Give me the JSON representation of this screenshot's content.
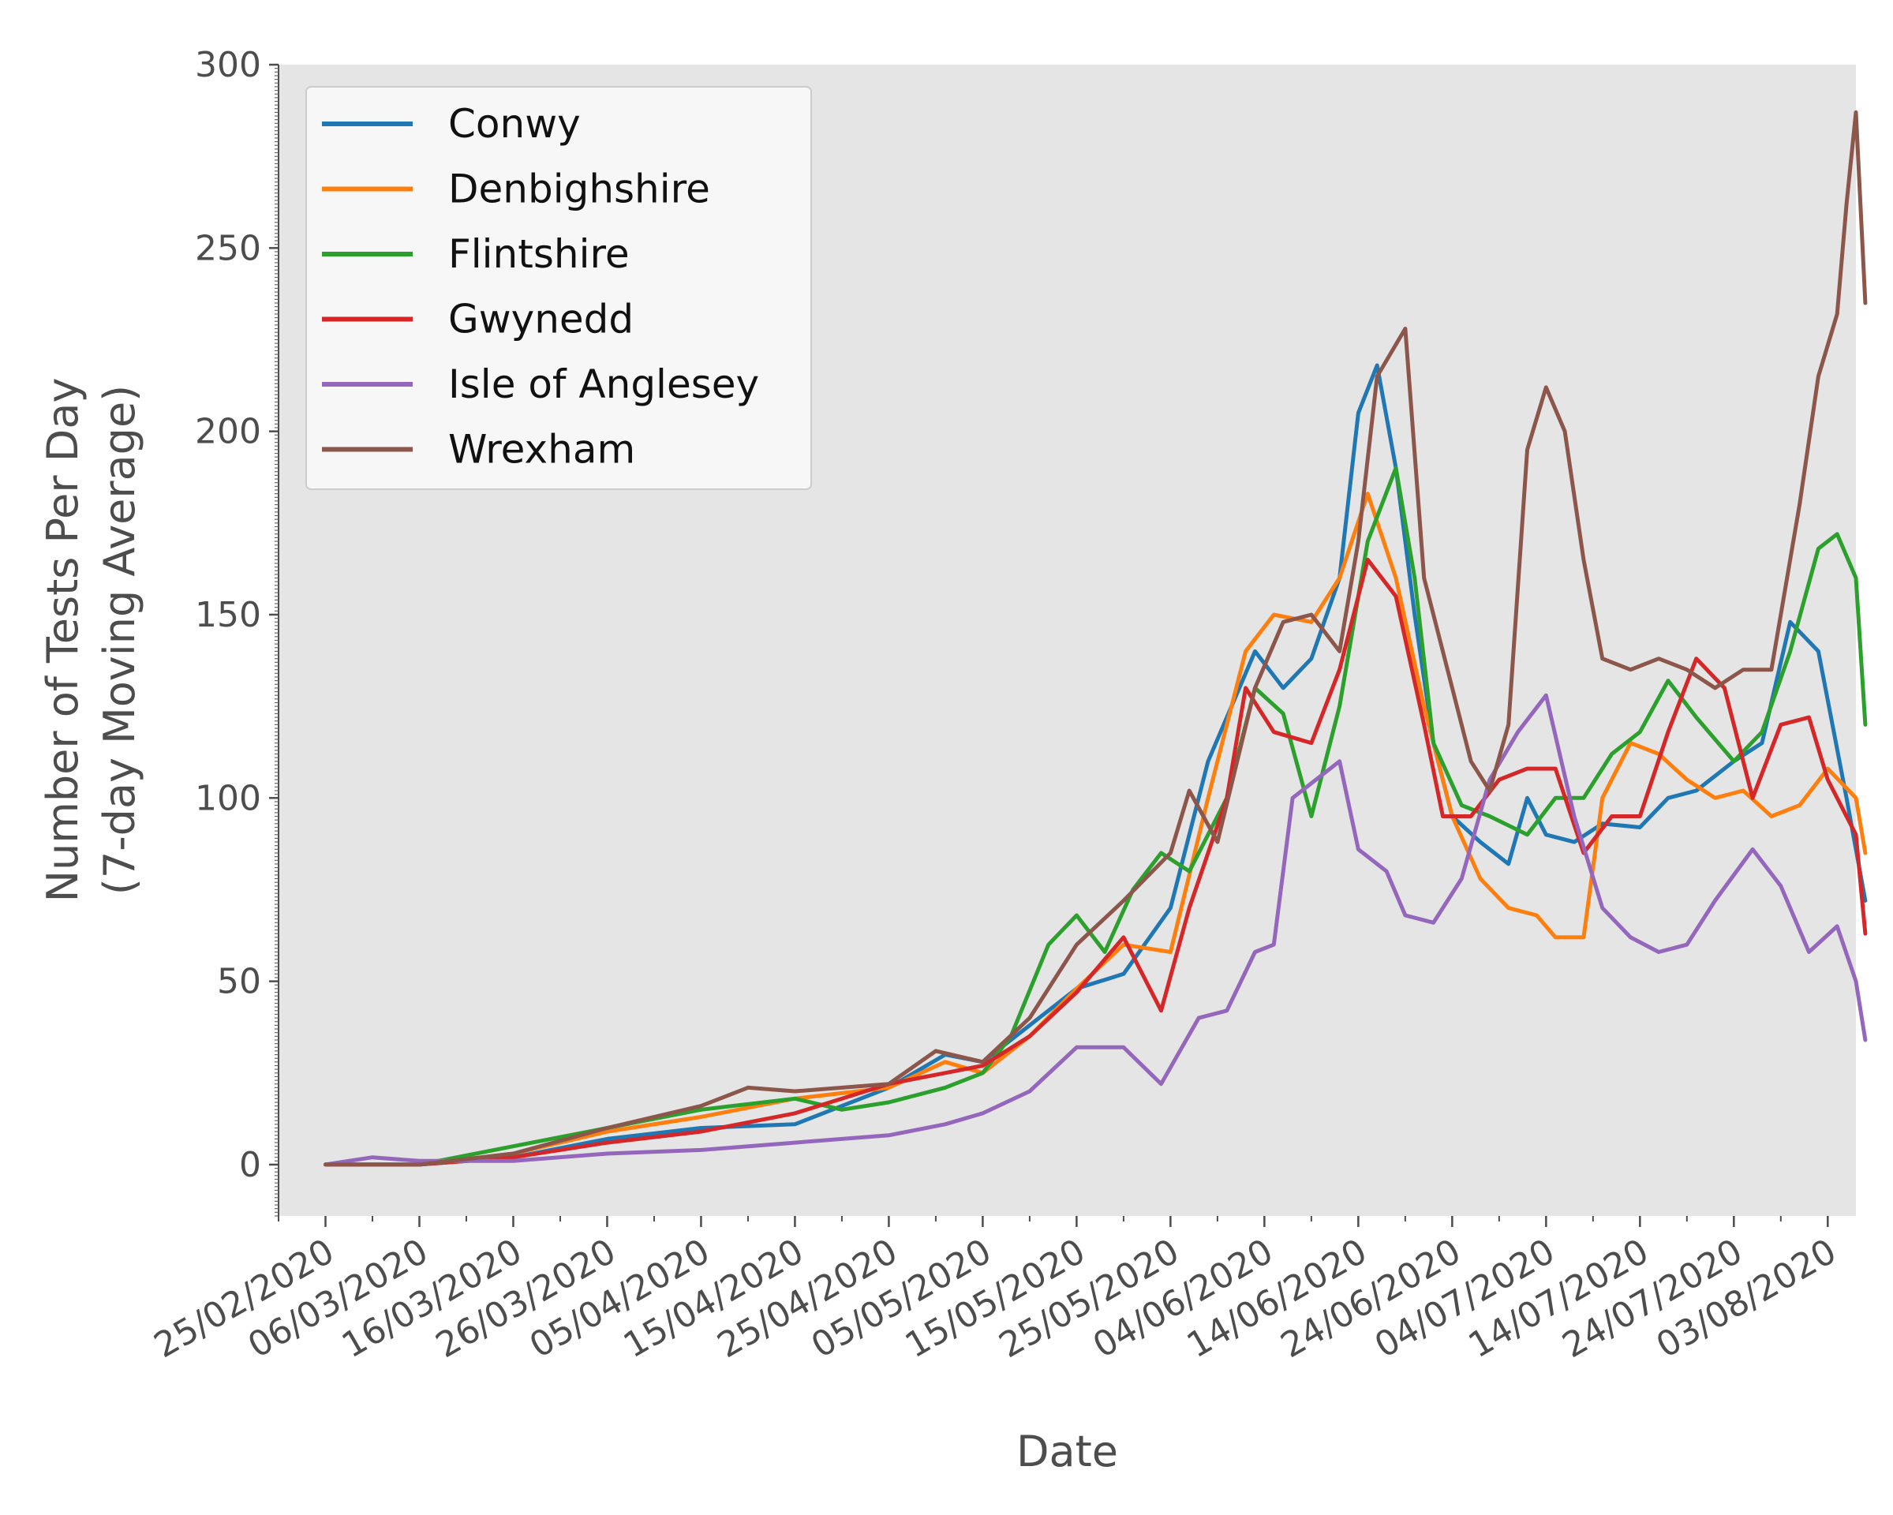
{
  "chart_data": {
    "type": "line",
    "title": "",
    "xlabel": "Date",
    "ylabel": [
      "Number of Tests Per Day",
      "(7-day Moving Average)"
    ],
    "x_range": [
      "2020-02-20",
      "2020-08-06"
    ],
    "x_ticks": [
      "25/02/2020",
      "06/03/2020",
      "16/03/2020",
      "26/03/2020",
      "05/04/2020",
      "15/04/2020",
      "25/04/2020",
      "05/05/2020",
      "15/05/2020",
      "25/05/2020",
      "04/06/2020",
      "14/06/2020",
      "24/06/2020",
      "04/07/2020",
      "14/07/2020",
      "24/07/2020",
      "03/08/2020"
    ],
    "ylim": [
      -14,
      300
    ],
    "y_ticks": [
      0,
      50,
      100,
      150,
      200,
      250,
      300
    ],
    "grid": false,
    "legend": {
      "placement": "upper-left"
    },
    "colors": {
      "background": "#e5e5e5"
    },
    "series": [
      {
        "name": "Conwy",
        "color": "#1f77b4",
        "points": [
          [
            "25/02/2020",
            0
          ],
          [
            "06/03/2020",
            0
          ],
          [
            "16/03/2020",
            2
          ],
          [
            "26/03/2020",
            7
          ],
          [
            "05/04/2020",
            10
          ],
          [
            "15/04/2020",
            11
          ],
          [
            "25/04/2020",
            21
          ],
          [
            "01/05/2020",
            30
          ],
          [
            "05/05/2020",
            28
          ],
          [
            "10/05/2020",
            38
          ],
          [
            "15/05/2020",
            48
          ],
          [
            "20/05/2020",
            52
          ],
          [
            "25/05/2020",
            70
          ],
          [
            "29/05/2020",
            110
          ],
          [
            "03/06/2020",
            140
          ],
          [
            "06/06/2020",
            130
          ],
          [
            "09/06/2020",
            138
          ],
          [
            "12/06/2020",
            160
          ],
          [
            "14/06/2020",
            205
          ],
          [
            "16/06/2020",
            218
          ],
          [
            "18/06/2020",
            190
          ],
          [
            "20/06/2020",
            150
          ],
          [
            "22/06/2020",
            115
          ],
          [
            "24/06/2020",
            95
          ],
          [
            "27/06/2020",
            88
          ],
          [
            "30/06/2020",
            82
          ],
          [
            "02/07/2020",
            100
          ],
          [
            "04/07/2020",
            90
          ],
          [
            "07/07/2020",
            88
          ],
          [
            "10/07/2020",
            93
          ],
          [
            "14/07/2020",
            92
          ],
          [
            "17/07/2020",
            100
          ],
          [
            "20/07/2020",
            102
          ],
          [
            "24/07/2020",
            110
          ],
          [
            "27/07/2020",
            115
          ],
          [
            "30/07/2020",
            148
          ],
          [
            "02/08/2020",
            140
          ],
          [
            "05/08/2020",
            100
          ],
          [
            "07/08/2020",
            72
          ]
        ]
      },
      {
        "name": "Denbighshire",
        "color": "#ff7f0e",
        "points": [
          [
            "25/02/2020",
            0
          ],
          [
            "06/03/2020",
            0
          ],
          [
            "16/03/2020",
            3
          ],
          [
            "26/03/2020",
            9
          ],
          [
            "05/04/2020",
            13
          ],
          [
            "15/04/2020",
            18
          ],
          [
            "25/04/2020",
            21
          ],
          [
            "01/05/2020",
            28
          ],
          [
            "05/05/2020",
            25
          ],
          [
            "10/05/2020",
            35
          ],
          [
            "15/05/2020",
            48
          ],
          [
            "20/05/2020",
            60
          ],
          [
            "25/05/2020",
            58
          ],
          [
            "29/05/2020",
            100
          ],
          [
            "02/06/2020",
            140
          ],
          [
            "05/06/2020",
            150
          ],
          [
            "09/06/2020",
            148
          ],
          [
            "12/06/2020",
            160
          ],
          [
            "15/06/2020",
            183
          ],
          [
            "18/06/2020",
            160
          ],
          [
            "21/06/2020",
            125
          ],
          [
            "24/06/2020",
            95
          ],
          [
            "27/06/2020",
            78
          ],
          [
            "30/06/2020",
            70
          ],
          [
            "03/07/2020",
            68
          ],
          [
            "05/07/2020",
            62
          ],
          [
            "08/07/2020",
            62
          ],
          [
            "10/07/2020",
            100
          ],
          [
            "13/07/2020",
            115
          ],
          [
            "16/07/2020",
            112
          ],
          [
            "19/07/2020",
            105
          ],
          [
            "22/07/2020",
            100
          ],
          [
            "25/07/2020",
            102
          ],
          [
            "28/07/2020",
            95
          ],
          [
            "31/07/2020",
            98
          ],
          [
            "03/08/2020",
            108
          ],
          [
            "06/08/2020",
            100
          ],
          [
            "07/08/2020",
            85
          ]
        ]
      },
      {
        "name": "Flintshire",
        "color": "#2ca02c",
        "points": [
          [
            "25/02/2020",
            0
          ],
          [
            "06/03/2020",
            0
          ],
          [
            "16/03/2020",
            5
          ],
          [
            "26/03/2020",
            10
          ],
          [
            "05/04/2020",
            15
          ],
          [
            "15/04/2020",
            18
          ],
          [
            "20/04/2020",
            15
          ],
          [
            "25/04/2020",
            17
          ],
          [
            "01/05/2020",
            21
          ],
          [
            "05/05/2020",
            25
          ],
          [
            "08/05/2020",
            35
          ],
          [
            "12/05/2020",
            60
          ],
          [
            "15/05/2020",
            68
          ],
          [
            "18/05/2020",
            58
          ],
          [
            "21/05/2020",
            75
          ],
          [
            "24/05/2020",
            85
          ],
          [
            "27/05/2020",
            80
          ],
          [
            "31/05/2020",
            100
          ],
          [
            "03/06/2020",
            130
          ],
          [
            "06/06/2020",
            123
          ],
          [
            "09/06/2020",
            95
          ],
          [
            "12/06/2020",
            125
          ],
          [
            "15/06/2020",
            170
          ],
          [
            "18/06/2020",
            190
          ],
          [
            "20/06/2020",
            160
          ],
          [
            "22/06/2020",
            115
          ],
          [
            "25/06/2020",
            98
          ],
          [
            "28/06/2020",
            95
          ],
          [
            "02/07/2020",
            90
          ],
          [
            "05/07/2020",
            100
          ],
          [
            "08/07/2020",
            100
          ],
          [
            "11/07/2020",
            112
          ],
          [
            "14/07/2020",
            118
          ],
          [
            "17/07/2020",
            132
          ],
          [
            "20/07/2020",
            122
          ],
          [
            "24/07/2020",
            110
          ],
          [
            "27/07/2020",
            118
          ],
          [
            "30/07/2020",
            140
          ],
          [
            "02/08/2020",
            168
          ],
          [
            "04/08/2020",
            172
          ],
          [
            "06/08/2020",
            160
          ],
          [
            "07/08/2020",
            120
          ]
        ]
      },
      {
        "name": "Gwynedd",
        "color": "#d62728",
        "points": [
          [
            "25/02/2020",
            0
          ],
          [
            "06/03/2020",
            0
          ],
          [
            "16/03/2020",
            2
          ],
          [
            "26/03/2020",
            6
          ],
          [
            "05/04/2020",
            9
          ],
          [
            "15/04/2020",
            14
          ],
          [
            "25/04/2020",
            22
          ],
          [
            "01/05/2020",
            25
          ],
          [
            "05/05/2020",
            27
          ],
          [
            "10/05/2020",
            35
          ],
          [
            "15/05/2020",
            47
          ],
          [
            "20/05/2020",
            62
          ],
          [
            "24/05/2020",
            42
          ],
          [
            "27/05/2020",
            70
          ],
          [
            "31/05/2020",
            100
          ],
          [
            "02/06/2020",
            130
          ],
          [
            "05/06/2020",
            118
          ],
          [
            "09/06/2020",
            115
          ],
          [
            "12/06/2020",
            135
          ],
          [
            "15/06/2020",
            165
          ],
          [
            "18/06/2020",
            155
          ],
          [
            "21/06/2020",
            120
          ],
          [
            "23/06/2020",
            95
          ],
          [
            "26/06/2020",
            95
          ],
          [
            "29/06/2020",
            105
          ],
          [
            "02/07/2020",
            108
          ],
          [
            "05/07/2020",
            108
          ],
          [
            "08/07/2020",
            85
          ],
          [
            "11/07/2020",
            95
          ],
          [
            "14/07/2020",
            95
          ],
          [
            "17/07/2020",
            118
          ],
          [
            "20/07/2020",
            138
          ],
          [
            "23/07/2020",
            130
          ],
          [
            "26/07/2020",
            100
          ],
          [
            "29/07/2020",
            120
          ],
          [
            "01/08/2020",
            122
          ],
          [
            "03/08/2020",
            105
          ],
          [
            "06/08/2020",
            90
          ],
          [
            "07/08/2020",
            63
          ]
        ]
      },
      {
        "name": "Isle of Anglesey",
        "color": "#9467bd",
        "points": [
          [
            "25/02/2020",
            0
          ],
          [
            "01/03/2020",
            2
          ],
          [
            "06/03/2020",
            1
          ],
          [
            "16/03/2020",
            1
          ],
          [
            "26/03/2020",
            3
          ],
          [
            "05/04/2020",
            4
          ],
          [
            "15/04/2020",
            6
          ],
          [
            "25/04/2020",
            8
          ],
          [
            "01/05/2020",
            11
          ],
          [
            "05/05/2020",
            14
          ],
          [
            "10/05/2020",
            20
          ],
          [
            "15/05/2020",
            32
          ],
          [
            "20/05/2020",
            32
          ],
          [
            "24/05/2020",
            22
          ],
          [
            "28/05/2020",
            40
          ],
          [
            "31/05/2020",
            42
          ],
          [
            "03/06/2020",
            58
          ],
          [
            "05/06/2020",
            60
          ],
          [
            "07/06/2020",
            100
          ],
          [
            "10/06/2020",
            106
          ],
          [
            "12/06/2020",
            110
          ],
          [
            "14/06/2020",
            86
          ],
          [
            "17/06/2020",
            80
          ],
          [
            "19/06/2020",
            68
          ],
          [
            "22/06/2020",
            66
          ],
          [
            "25/06/2020",
            78
          ],
          [
            "28/06/2020",
            105
          ],
          [
            "01/07/2020",
            118
          ],
          [
            "04/07/2020",
            128
          ],
          [
            "07/07/2020",
            95
          ],
          [
            "10/07/2020",
            70
          ],
          [
            "13/07/2020",
            62
          ],
          [
            "16/07/2020",
            58
          ],
          [
            "19/07/2020",
            60
          ],
          [
            "22/07/2020",
            72
          ],
          [
            "26/07/2020",
            86
          ],
          [
            "29/07/2020",
            76
          ],
          [
            "01/08/2020",
            58
          ],
          [
            "04/08/2020",
            65
          ],
          [
            "06/08/2020",
            50
          ],
          [
            "07/08/2020",
            34
          ]
        ]
      },
      {
        "name": "Wrexham",
        "color": "#8c564b",
        "points": [
          [
            "25/02/2020",
            0
          ],
          [
            "06/03/2020",
            0
          ],
          [
            "16/03/2020",
            3
          ],
          [
            "26/03/2020",
            10
          ],
          [
            "05/04/2020",
            16
          ],
          [
            "10/04/2020",
            21
          ],
          [
            "15/04/2020",
            20
          ],
          [
            "25/04/2020",
            22
          ],
          [
            "30/04/2020",
            31
          ],
          [
            "05/05/2020",
            28
          ],
          [
            "10/05/2020",
            40
          ],
          [
            "15/05/2020",
            60
          ],
          [
            "20/05/2020",
            72
          ],
          [
            "25/05/2020",
            85
          ],
          [
            "27/05/2020",
            102
          ],
          [
            "30/05/2020",
            88
          ],
          [
            "03/06/2020",
            130
          ],
          [
            "06/06/2020",
            148
          ],
          [
            "09/06/2020",
            150
          ],
          [
            "12/06/2020",
            140
          ],
          [
            "14/06/2020",
            170
          ],
          [
            "16/06/2020",
            215
          ],
          [
            "19/06/2020",
            228
          ],
          [
            "21/06/2020",
            160
          ],
          [
            "24/06/2020",
            130
          ],
          [
            "26/06/2020",
            110
          ],
          [
            "28/06/2020",
            102
          ],
          [
            "30/06/2020",
            120
          ],
          [
            "02/07/2020",
            195
          ],
          [
            "04/07/2020",
            212
          ],
          [
            "06/07/2020",
            200
          ],
          [
            "08/07/2020",
            165
          ],
          [
            "10/07/2020",
            138
          ],
          [
            "13/07/2020",
            135
          ],
          [
            "16/07/2020",
            138
          ],
          [
            "19/07/2020",
            135
          ],
          [
            "22/07/2020",
            130
          ],
          [
            "25/07/2020",
            135
          ],
          [
            "28/07/2020",
            135
          ],
          [
            "31/07/2020",
            180
          ],
          [
            "02/08/2020",
            215
          ],
          [
            "04/08/2020",
            232
          ],
          [
            "05/08/2020",
            262
          ],
          [
            "06/08/2020",
            287
          ],
          [
            "07/08/2020",
            235
          ]
        ]
      }
    ]
  }
}
